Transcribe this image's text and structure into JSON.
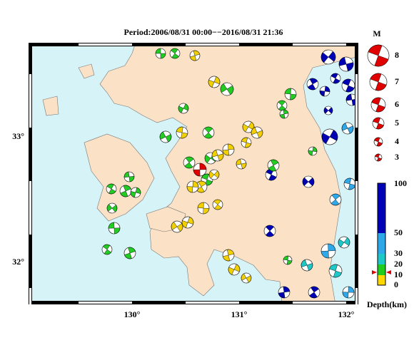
{
  "title": "Period:2006/08/31 00:00−−2016/08/31 21:36",
  "axes": {
    "x_labels": [
      "130°",
      "131°",
      "132°"
    ],
    "y_labels": [
      "33°",
      "32°"
    ]
  },
  "magnitude_legend": {
    "title": "M",
    "labels": [
      "8",
      "7",
      "6",
      "5",
      "4",
      "3"
    ]
  },
  "depth_legend": {
    "labels": [
      "100",
      "50",
      "30",
      "20",
      "10",
      "0"
    ],
    "title": "Depth(km)"
  }
}
